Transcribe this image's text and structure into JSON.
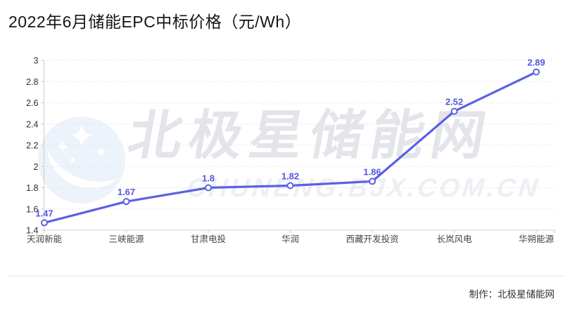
{
  "title": "2022年6月储能EPC中标价格（元/Wh）",
  "chart_data": {
    "type": "line",
    "title": "2022年6月储能EPC中标价格（元/Wh）",
    "categories": [
      "天润新能",
      "三峡能源",
      "甘肃电投",
      "华润",
      "西藏开发投资",
      "长岚风电",
      "华朔能源"
    ],
    "values": [
      1.47,
      1.67,
      1.8,
      1.82,
      1.86,
      2.52,
      2.89
    ],
    "point_labels": [
      "1.47",
      "1.67",
      "1.8",
      "1.82",
      "1.86",
      "2.52",
      "2.89"
    ],
    "xlabel": "",
    "ylabel": "",
    "ylim": [
      1.4,
      3.0
    ],
    "ytick_step": 0.2,
    "ytick_labels": [
      "1.4",
      "1.6",
      "1.8",
      "2",
      "2.2",
      "2.4",
      "2.6",
      "2.8",
      "3"
    ],
    "grid": true,
    "grid_style": "dotted",
    "legend": "none",
    "line_color": "#5a61e4",
    "marker_fill": "#ffffff",
    "value_label_color": "#4f58dd",
    "axis_label_color": "#2e2e2e",
    "category_label_color": "#444444",
    "grid_color": "#dddddd",
    "axis_line_color": "#cccccc"
  },
  "watermark": {
    "logo": "crescent-moon-with-stars",
    "logo_color": "#edf3fa",
    "text_cn": "北极星储能网",
    "text_en": "CHUNENG.BJX.COM.CN"
  },
  "footer": {
    "credit": "制作：北极星储能网"
  }
}
